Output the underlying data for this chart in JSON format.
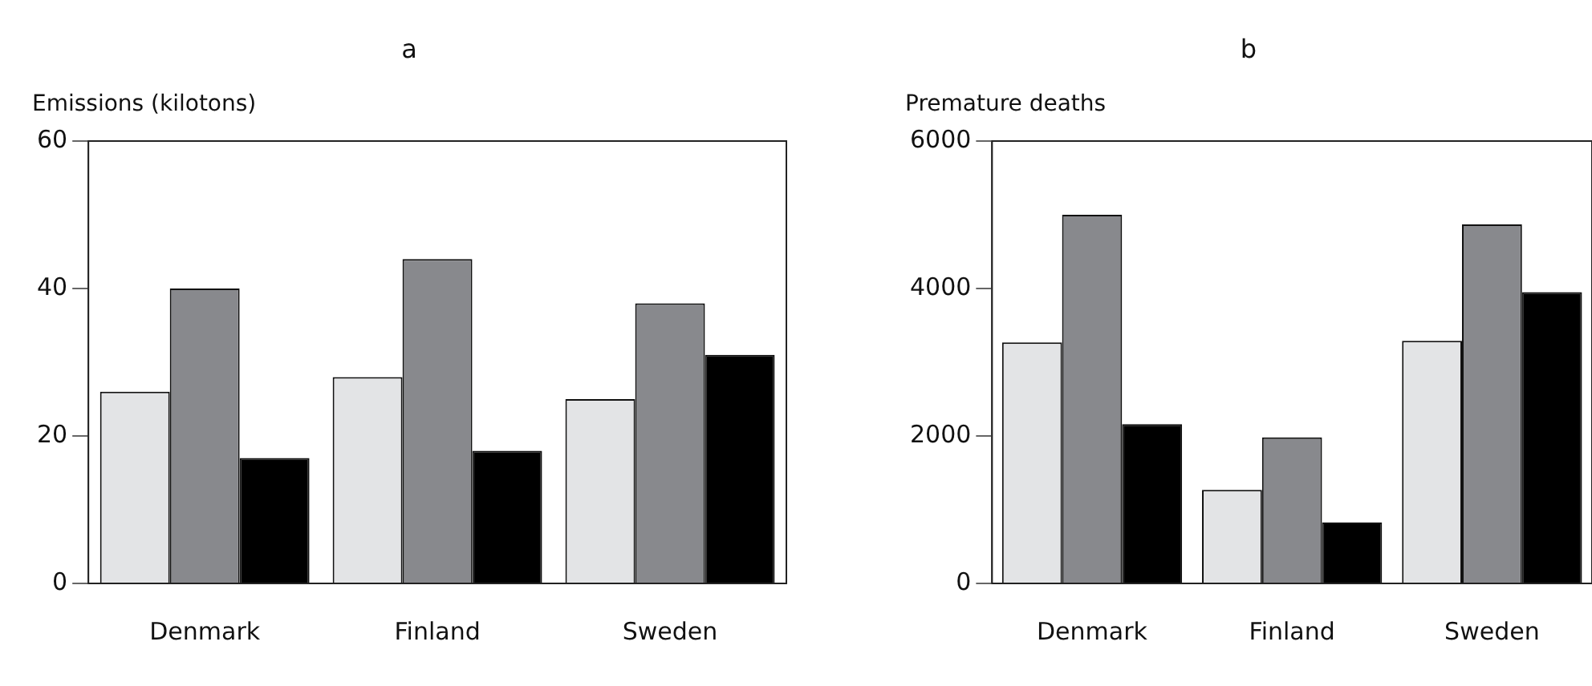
{
  "chart_data": [
    {
      "type": "bar",
      "title": "a",
      "ylabel": "Emissions (kilotons)",
      "categories": [
        "Denmark",
        "Finland",
        "Sweden"
      ],
      "series": [
        {
          "color": "#e3e4e6",
          "values": [
            26,
            28,
            25
          ]
        },
        {
          "color": "#88898d",
          "values": [
            40,
            44,
            38
          ]
        },
        {
          "color": "#000000",
          "values": [
            17,
            18,
            31
          ]
        }
      ],
      "ylim": [
        0,
        60
      ],
      "yticks": [
        0,
        20,
        40,
        60
      ]
    },
    {
      "type": "bar",
      "title": "b",
      "ylabel": "Premature deaths",
      "categories": [
        "Denmark",
        "Finland",
        "Sweden"
      ],
      "series": [
        {
          "color": "#e3e4e6",
          "values": [
            3270,
            1270,
            3290
          ]
        },
        {
          "color": "#88898d",
          "values": [
            5000,
            1980,
            4870
          ]
        },
        {
          "color": "#000000",
          "values": [
            2160,
            825,
            3950
          ]
        }
      ],
      "ylim": [
        0,
        6000
      ],
      "yticks": [
        0,
        2000,
        4000,
        6000
      ]
    }
  ]
}
